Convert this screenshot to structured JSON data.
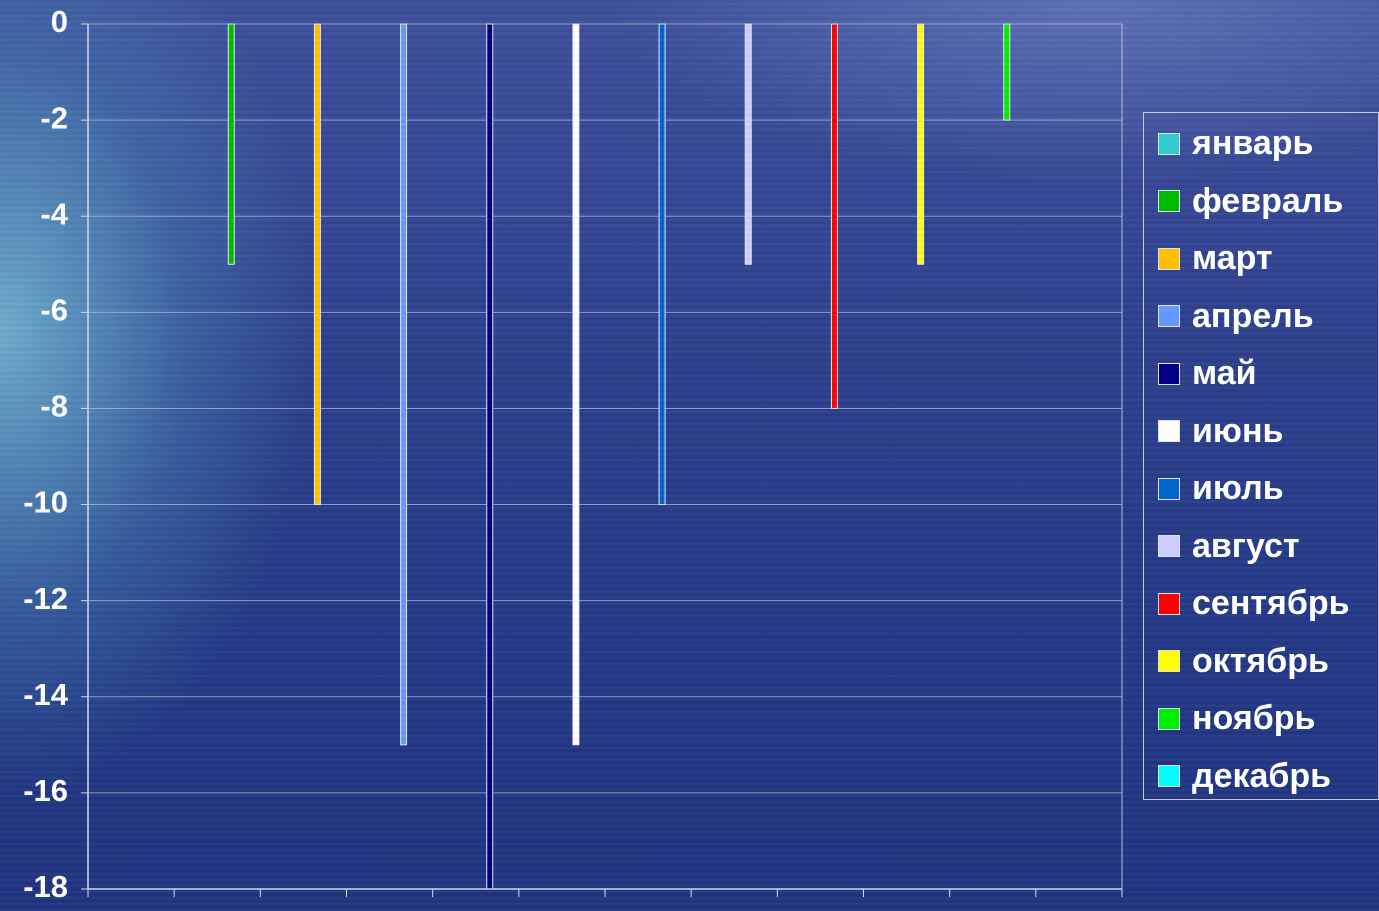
{
  "chart_data": {
    "type": "bar",
    "title": "",
    "xlabel": "",
    "ylabel": "",
    "ylim": [
      -18,
      0
    ],
    "yticks": [
      0,
      -2,
      -4,
      -6,
      -8,
      -10,
      -12,
      -14,
      -16,
      -18
    ],
    "grid": true,
    "legend_position": "right",
    "series": [
      {
        "name": "январь",
        "value": 0,
        "color": "#33cccc"
      },
      {
        "name": "февраль",
        "value": -5,
        "color": "#00bb00"
      },
      {
        "name": "март",
        "value": -10,
        "color": "#ffc000"
      },
      {
        "name": "апрель",
        "value": -15,
        "color": "#6699ff"
      },
      {
        "name": "май",
        "value": -18,
        "color": "#000080"
      },
      {
        "name": "июнь",
        "value": -15,
        "color": "#ffffff"
      },
      {
        "name": "июль",
        "value": -10,
        "color": "#0066cc"
      },
      {
        "name": "август",
        "value": -5,
        "color": "#ccccff"
      },
      {
        "name": "сентябрь",
        "value": -8,
        "color": "#ff0000"
      },
      {
        "name": "октябрь",
        "value": -5,
        "color": "#ffff00"
      },
      {
        "name": "ноябрь",
        "value": -2,
        "color": "#00ee00"
      },
      {
        "name": "декабрь",
        "value": 0,
        "color": "#00ffff"
      }
    ]
  }
}
